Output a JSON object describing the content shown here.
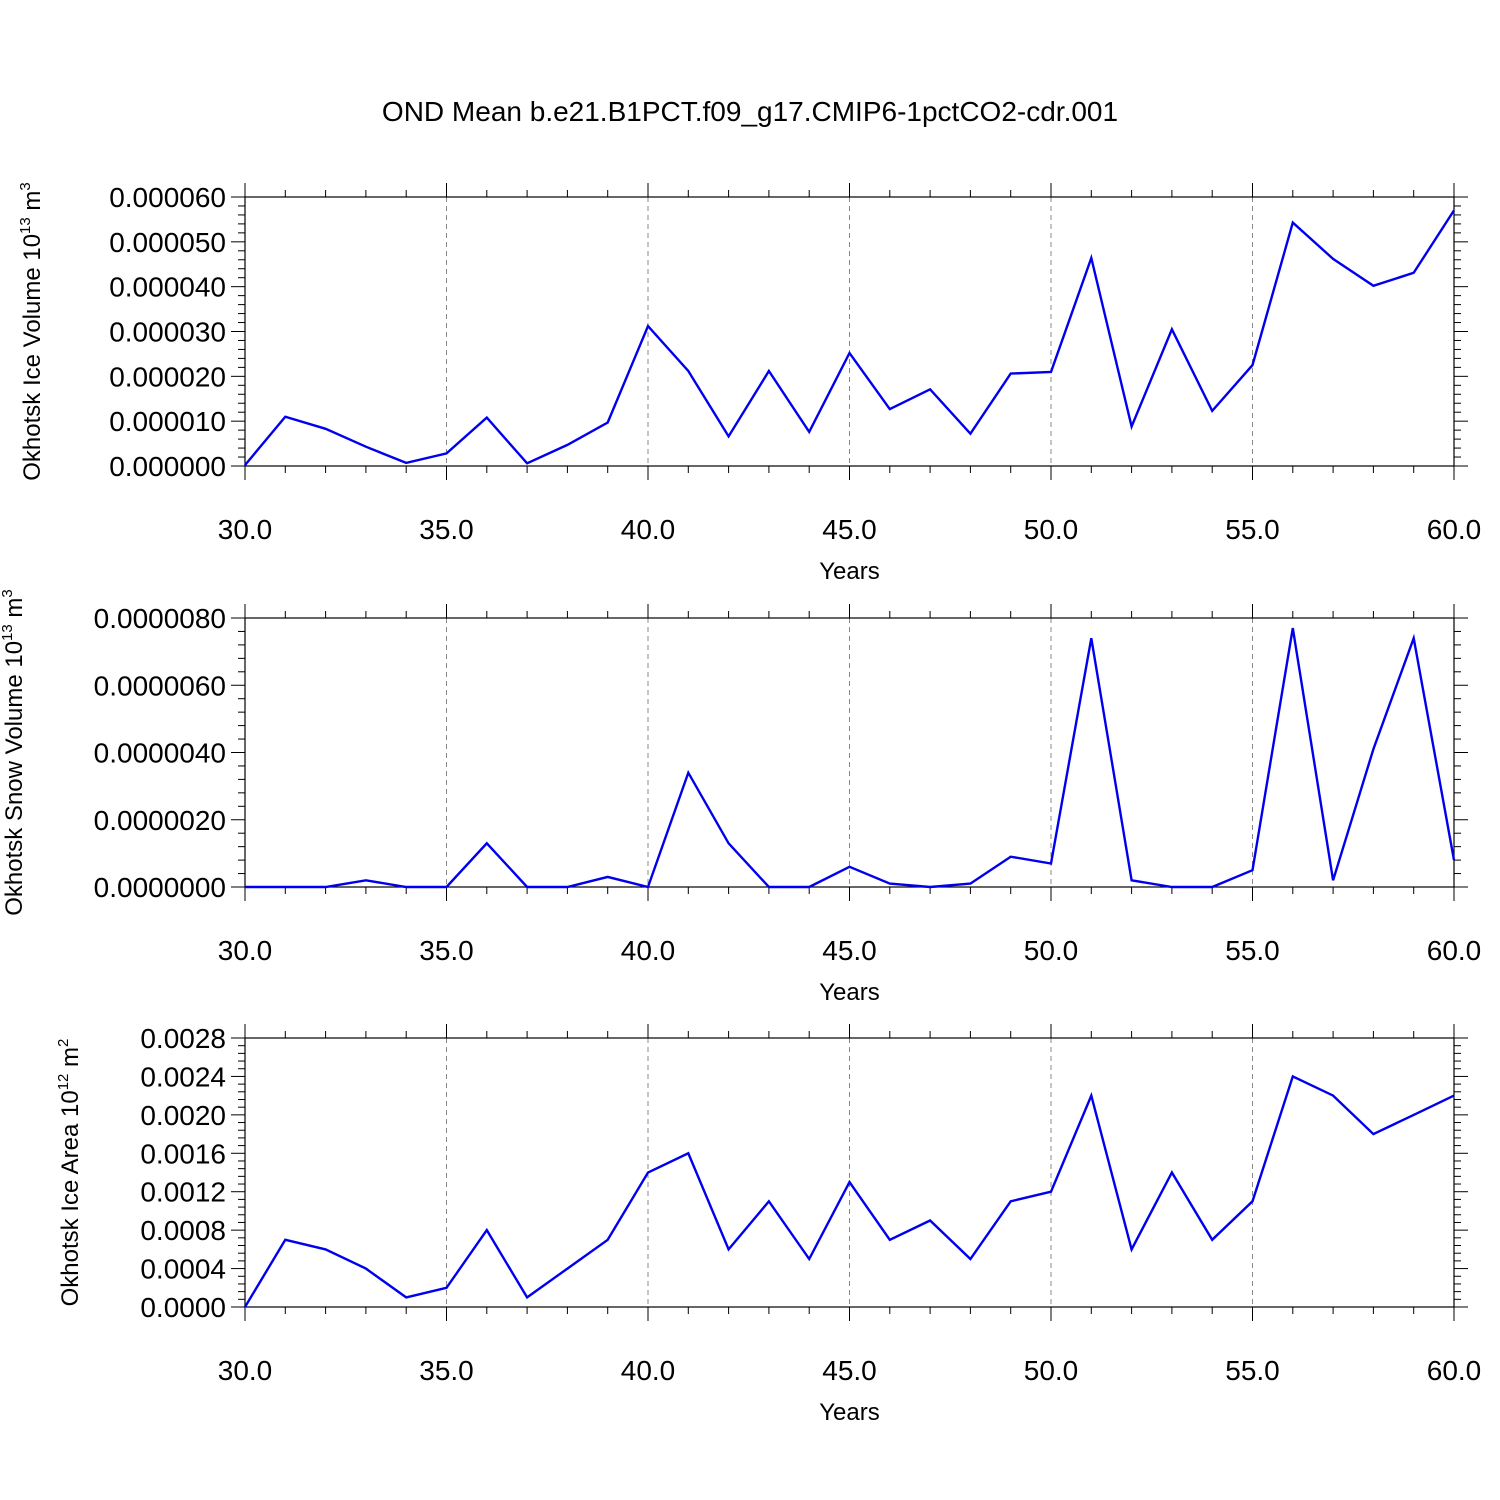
{
  "figure": {
    "title": "OND Mean b.e21.B1PCT.f09_g17.CMIP6-1pctCO2-cdr.001"
  },
  "colors": {
    "line": "#0000ee",
    "axis": "#000000",
    "grid": "#888888"
  },
  "chart_data": [
    {
      "type": "line",
      "xlabel": "Years",
      "ylabel_main": "Okhotsk Ice Volume 10",
      "ylabel_exp": "13",
      "ylabel_unit": " m",
      "ylabel_unit_exp": "3",
      "xlim": [
        30,
        60
      ],
      "ylim": [
        0,
        6e-05
      ],
      "xticks": [
        30,
        35,
        40,
        45,
        50,
        55,
        60
      ],
      "xtick_labels": [
        "30.0",
        "35.0",
        "40.0",
        "45.0",
        "50.0",
        "55.0",
        "60.0"
      ],
      "yticks": [
        0,
        1e-05,
        2e-05,
        3e-05,
        4e-05,
        5e-05,
        6e-05
      ],
      "ytick_labels": [
        "0.000000",
        "0.000010",
        "0.000020",
        "0.000030",
        "0.000040",
        "0.000050",
        "0.000060"
      ],
      "grid": "vertical dashed at major x ticks",
      "x": [
        30,
        31,
        32,
        33,
        34,
        35,
        36,
        37,
        38,
        39,
        40,
        41,
        42,
        43,
        44,
        45,
        46,
        47,
        48,
        49,
        50,
        51,
        52,
        53,
        54,
        55,
        56,
        57,
        58,
        59,
        60
      ],
      "values": [
        2e-07,
        1.1e-05,
        8.3e-06,
        4.3e-06,
        7e-07,
        2.8e-06,
        1.08e-05,
        6e-07,
        4.7e-06,
        9.7e-06,
        3.12e-05,
        2.12e-05,
        6.6e-06,
        2.12e-05,
        7.6e-06,
        2.52e-05,
        1.27e-05,
        1.71e-05,
        7.2e-06,
        2.06e-05,
        2.1e-05,
        4.64e-05,
        8.8e-06,
        3.05e-05,
        1.23e-05,
        2.25e-05,
        5.43e-05,
        4.62e-05,
        4.02e-05,
        4.31e-05,
        5.7e-05
      ]
    },
    {
      "type": "line",
      "xlabel": "Years",
      "ylabel_main": "Okhotsk Snow Volume 10",
      "ylabel_exp": "13",
      "ylabel_unit": " m",
      "ylabel_unit_exp": "3",
      "xlim": [
        30,
        60
      ],
      "ylim": [
        0,
        8e-06
      ],
      "xticks": [
        30,
        35,
        40,
        45,
        50,
        55,
        60
      ],
      "xtick_labels": [
        "30.0",
        "35.0",
        "40.0",
        "45.0",
        "50.0",
        "55.0",
        "60.0"
      ],
      "yticks": [
        0,
        2e-06,
        4e-06,
        6e-06,
        8e-06
      ],
      "ytick_labels": [
        "0.0000000",
        "0.0000020",
        "0.0000040",
        "0.0000060",
        "0.0000080"
      ],
      "grid": "vertical dashed at major x ticks",
      "x": [
        30,
        31,
        32,
        33,
        34,
        35,
        36,
        37,
        38,
        39,
        40,
        41,
        42,
        43,
        44,
        45,
        46,
        47,
        48,
        49,
        50,
        51,
        52,
        53,
        54,
        55,
        56,
        57,
        58,
        59,
        60
      ],
      "values": [
        0.0,
        0.0,
        0.0,
        2e-07,
        0.0,
        0.0,
        1.3e-06,
        0.0,
        0.0,
        3e-07,
        0.0,
        3.4e-06,
        1.3e-06,
        0.0,
        0.0,
        6e-07,
        1e-07,
        0.0,
        1e-07,
        9e-07,
        7e-07,
        7.4e-06,
        2e-07,
        0.0,
        0.0,
        5e-07,
        7.7e-06,
        2e-07,
        4.1e-06,
        7.4e-06,
        8e-07
      ]
    },
    {
      "type": "line",
      "xlabel": "Years",
      "ylabel_main": "Okhotsk Ice Area 10",
      "ylabel_exp": "12",
      "ylabel_unit": " m",
      "ylabel_unit_exp": "2",
      "xlim": [
        30,
        60
      ],
      "ylim": [
        0,
        0.0028
      ],
      "xticks": [
        30,
        35,
        40,
        45,
        50,
        55,
        60
      ],
      "xtick_labels": [
        "30.0",
        "35.0",
        "40.0",
        "45.0",
        "50.0",
        "55.0",
        "60.0"
      ],
      "yticks": [
        0,
        0.0004,
        0.0008,
        0.0012,
        0.0016,
        0.002,
        0.0024,
        0.0028
      ],
      "ytick_labels": [
        "0.0000",
        "0.0004",
        "0.0008",
        "0.0012",
        "0.0016",
        "0.0020",
        "0.0024",
        "0.0028"
      ],
      "grid": "vertical dashed at major x ticks",
      "x": [
        30,
        31,
        32,
        33,
        34,
        35,
        36,
        37,
        38,
        39,
        40,
        41,
        42,
        43,
        44,
        45,
        46,
        47,
        48,
        49,
        50,
        51,
        52,
        53,
        54,
        55,
        56,
        57,
        58,
        59,
        60
      ],
      "values": [
        0.0,
        0.0007,
        0.0006,
        0.0004,
        0.0001,
        0.0002,
        0.0008,
        0.0001,
        0.0004,
        0.0007,
        0.0014,
        0.0016,
        0.0006,
        0.0011,
        0.0005,
        0.0013,
        0.0007,
        0.0009,
        0.0005,
        0.0011,
        0.0012,
        0.0022,
        0.0006,
        0.0014,
        0.0007,
        0.0011,
        0.0024,
        0.0022,
        0.0018,
        0.002,
        0.0022
      ]
    }
  ]
}
